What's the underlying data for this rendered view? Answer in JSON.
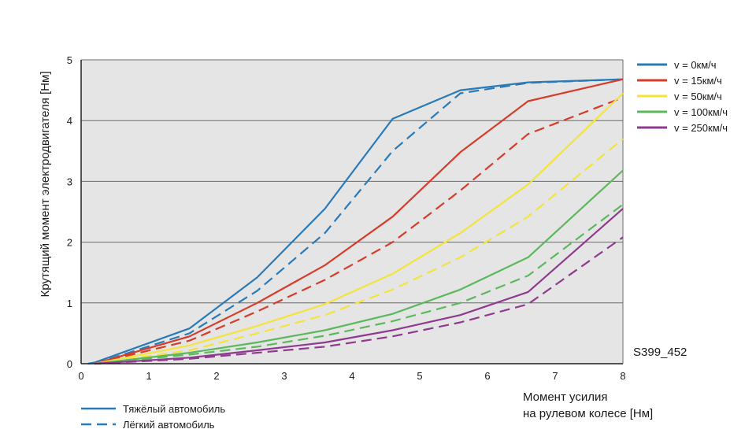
{
  "chart_data": {
    "type": "line",
    "title": "",
    "xlabel_line1": "Момент усилия",
    "xlabel_line2": "на рулевом колесе [Нм]",
    "ylabel": "Крутящий момент электродвигателя [Нм]",
    "xlim": [
      0,
      8
    ],
    "ylim": [
      0,
      5
    ],
    "x_ticks": [
      "0",
      "1",
      "2",
      "3",
      "4",
      "5",
      "6",
      "7",
      "8"
    ],
    "y_ticks": [
      "0",
      "1",
      "2",
      "3",
      "4",
      "5"
    ],
    "grid": "horizontal",
    "figure_code": "S399_452",
    "legend_position": "right",
    "speed_legend": [
      {
        "label": "v = 0км/ч",
        "color": "#2a7ab8"
      },
      {
        "label": "v = 15км/ч",
        "color": "#d63c2a"
      },
      {
        "label": "v = 50км/ч",
        "color": "#f4e33c"
      },
      {
        "label": "v = 100км/ч",
        "color": "#5cb85c"
      },
      {
        "label": "v = 250км/ч",
        "color": "#8e3a8e"
      }
    ],
    "style_legend": [
      {
        "label": "Тяжёлый автомобиль",
        "dash": "solid"
      },
      {
        "label": "Лёгкий автомобиль",
        "dash": "dashed"
      }
    ],
    "series": [
      {
        "name": "v = 0км/ч, тяжёлый",
        "color": "#2a7ab8",
        "dash": "solid",
        "x": [
          0.1,
          0.2,
          1.6,
          2.6,
          3.6,
          4.6,
          5.6,
          6.6,
          8.0
        ],
        "y": [
          0,
          0.02,
          0.58,
          1.42,
          2.55,
          4.03,
          4.5,
          4.63,
          4.68
        ]
      },
      {
        "name": "v = 0км/ч, лёгкий",
        "color": "#2a7ab8",
        "dash": "dashed",
        "x": [
          0.2,
          1.6,
          2.6,
          3.6,
          4.6,
          5.6,
          6.6,
          8.0
        ],
        "y": [
          0,
          0.5,
          1.2,
          2.15,
          3.5,
          4.45,
          4.62,
          4.68
        ]
      },
      {
        "name": "v = 15км/ч, тяжёлый",
        "color": "#d63c2a",
        "dash": "solid",
        "x": [
          0.2,
          1.6,
          2.6,
          3.6,
          4.6,
          5.6,
          6.6,
          8.0
        ],
        "y": [
          0,
          0.45,
          1.0,
          1.62,
          2.42,
          3.48,
          4.32,
          4.68
        ]
      },
      {
        "name": "v = 15км/ч, лёгкий",
        "color": "#d63c2a",
        "dash": "dashed",
        "x": [
          0.2,
          1.6,
          2.6,
          3.6,
          4.6,
          5.6,
          6.6,
          8.0
        ],
        "y": [
          0,
          0.38,
          0.86,
          1.38,
          2.0,
          2.85,
          3.78,
          4.38
        ]
      },
      {
        "name": "v = 50км/ч, тяжёлый",
        "color": "#f4e33c",
        "dash": "solid",
        "x": [
          0.2,
          1.6,
          2.6,
          3.6,
          4.6,
          5.6,
          6.6,
          8.0
        ],
        "y": [
          0,
          0.3,
          0.62,
          0.98,
          1.48,
          2.15,
          2.95,
          4.45
        ]
      },
      {
        "name": "v = 50км/ч, лёгкий",
        "color": "#f4e33c",
        "dash": "dashed",
        "x": [
          0.2,
          1.6,
          2.6,
          3.6,
          4.6,
          5.6,
          6.6,
          8.0
        ],
        "y": [
          0,
          0.22,
          0.5,
          0.8,
          1.22,
          1.75,
          2.42,
          3.7
        ]
      },
      {
        "name": "v = 100км/ч, тяжёлый",
        "color": "#5cb85c",
        "dash": "solid",
        "x": [
          0.2,
          1.6,
          2.6,
          3.6,
          4.6,
          5.6,
          6.6,
          8.0
        ],
        "y": [
          0,
          0.18,
          0.35,
          0.55,
          0.82,
          1.22,
          1.75,
          3.18
        ]
      },
      {
        "name": "v = 100км/ч, лёгкий",
        "color": "#5cb85c",
        "dash": "dashed",
        "x": [
          0.2,
          1.6,
          2.6,
          3.6,
          4.6,
          5.6,
          6.6,
          8.0
        ],
        "y": [
          0,
          0.15,
          0.28,
          0.46,
          0.7,
          1.0,
          1.45,
          2.62
        ]
      },
      {
        "name": "v = 250км/ч, тяжёлый",
        "color": "#8e3a8e",
        "dash": "solid",
        "x": [
          0.2,
          1.6,
          2.6,
          3.6,
          4.6,
          5.6,
          6.6,
          8.0
        ],
        "y": [
          0,
          0.1,
          0.22,
          0.35,
          0.55,
          0.8,
          1.18,
          2.55
        ]
      },
      {
        "name": "v = 250км/ч, лёгкий",
        "color": "#8e3a8e",
        "dash": "dashed",
        "x": [
          0.2,
          1.6,
          2.6,
          3.6,
          4.6,
          5.6,
          6.6,
          8.0
        ],
        "y": [
          0,
          0.08,
          0.18,
          0.28,
          0.45,
          0.68,
          0.98,
          2.08
        ]
      }
    ]
  }
}
